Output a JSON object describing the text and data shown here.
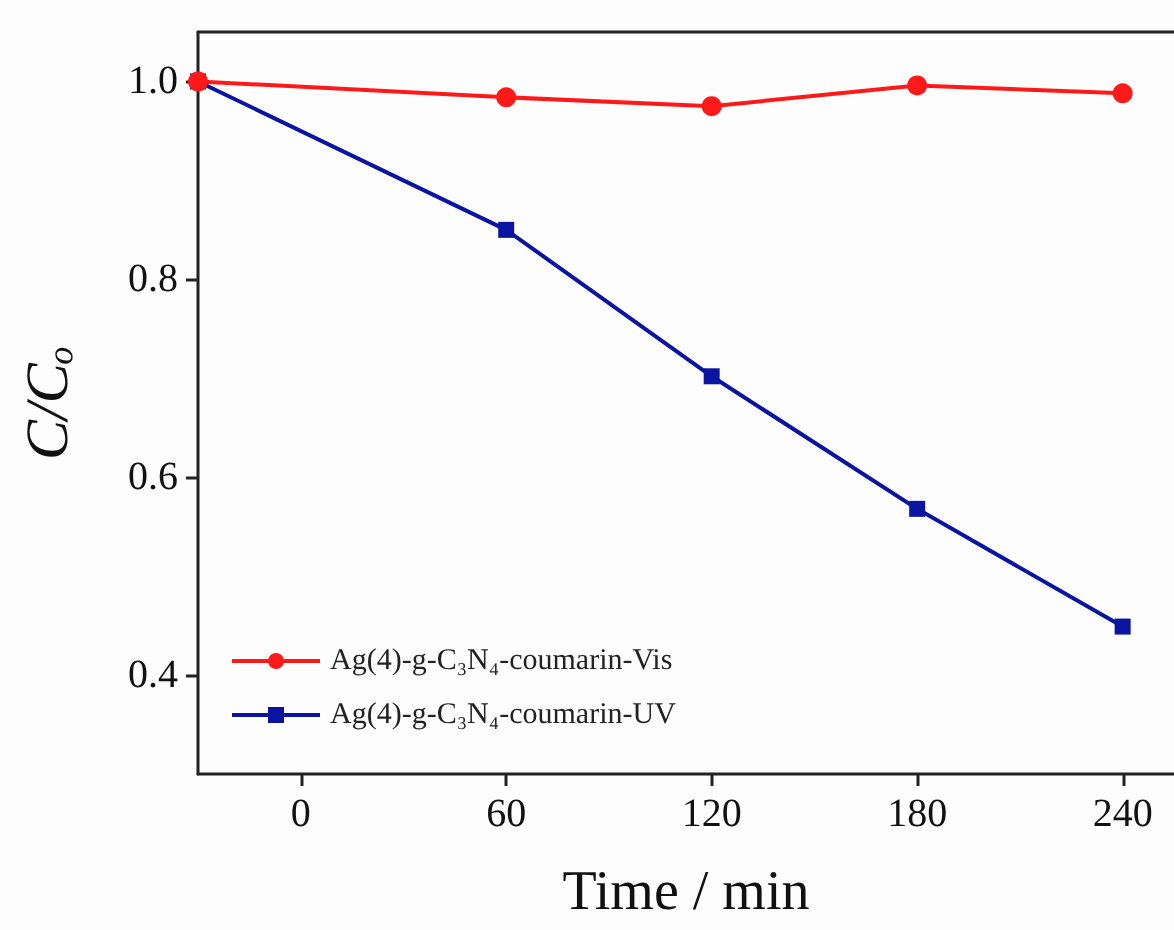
{
  "chart_data": {
    "type": "line",
    "xlabel": "Time / min",
    "ylabel": "C/Cₒ",
    "x": [
      -30,
      60,
      120,
      180,
      240
    ],
    "series": [
      {
        "name": "Ag(4)-g-C₃N₄-coumarin-Vis",
        "color": "#ff1a1a",
        "marker": "circle",
        "values": [
          1.0,
          0.984,
          0.975,
          0.996,
          0.988
        ]
      },
      {
        "name": "Ag(4)-g-C₃N₄-coumarin-UV",
        "color": "#0a14a0",
        "marker": "square",
        "values": [
          1.0,
          0.85,
          0.702,
          0.568,
          0.449
        ]
      }
    ],
    "xlim": [
      -30,
      255
    ],
    "xticks": [
      0,
      60,
      120,
      180,
      240
    ],
    "ylim": [
      0.3,
      1.05
    ],
    "yticks": [
      0.4,
      0.6,
      0.8,
      {
        "value": 1.0,
        "label": "1.0"
      }
    ],
    "legend": "bottom left",
    "grid": false
  }
}
